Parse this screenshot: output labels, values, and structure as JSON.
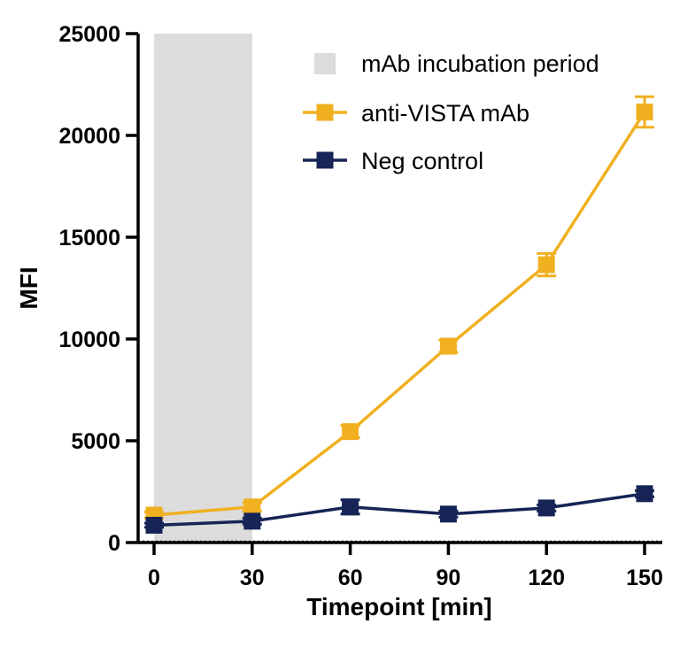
{
  "chart_data": {
    "type": "line",
    "title": "",
    "xlabel": "Timepoint [min]",
    "ylabel": "MFI",
    "x": [
      0,
      30,
      60,
      90,
      120,
      150
    ],
    "xticks": [
      "0",
      "30",
      "60",
      "90",
      "120",
      "150"
    ],
    "yticks": [
      "0",
      "5000",
      "10000",
      "15000",
      "20000",
      "25000"
    ],
    "xlim": [
      -3,
      155
    ],
    "ylim": [
      0,
      25000
    ],
    "grid": false,
    "legend_position": "top-right",
    "shaded_region": {
      "label": "mAb incubation period",
      "x_range": [
        0,
        30
      ],
      "color": "#dcdcdd"
    },
    "series": [
      {
        "name": "anti-VISTA mAb",
        "color": "#f0b020",
        "marker": "square",
        "values": [
          1350,
          1750,
          5450,
          9650,
          13650,
          21150
        ],
        "errors": [
          150,
          200,
          300,
          300,
          550,
          750
        ]
      },
      {
        "name": "Neg control",
        "color": "#162456",
        "marker": "square",
        "values": [
          850,
          1050,
          1750,
          1400,
          1700,
          2400
        ],
        "errors": [
          100,
          150,
          350,
          150,
          150,
          150
        ]
      }
    ]
  }
}
